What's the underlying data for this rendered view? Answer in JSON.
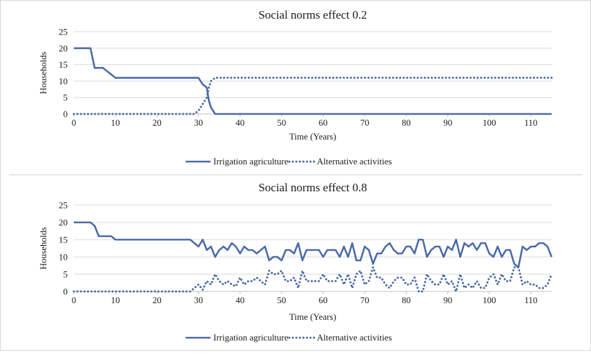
{
  "colors": {
    "series": "#4a6aa8",
    "grid": "#d9d9d9",
    "divider": "#cccccc"
  },
  "chart_data": [
    {
      "type": "line",
      "title": "Social norms effect 0.2",
      "xlabel": "Time (Years)",
      "ylabel": "Households",
      "xlim": [
        0,
        115
      ],
      "ylim": [
        0,
        25
      ],
      "xticks": [
        "0",
        "10",
        "20",
        "30",
        "40",
        "50",
        "60",
        "70",
        "80",
        "90",
        "100",
        "110"
      ],
      "yticks": [
        "0",
        "5",
        "10",
        "15",
        "20",
        "25"
      ],
      "grid": "horizontal",
      "legend": "bottom",
      "series": [
        {
          "name": "Irrigation agriculture",
          "style": "solid",
          "points": [
            [
              0,
              20
            ],
            [
              4,
              20
            ],
            [
              5,
              14
            ],
            [
              7,
              14
            ],
            [
              9,
              12
            ],
            [
              10,
              11
            ],
            [
              30,
              11
            ],
            [
              31,
              9
            ],
            [
              32,
              8
            ],
            [
              32.5,
              4
            ],
            [
              33,
              2
            ],
            [
              34,
              0
            ],
            [
              115,
              0
            ]
          ]
        },
        {
          "name": "Alternative activities",
          "style": "dotted",
          "points": [
            [
              0,
              0
            ],
            [
              29,
              0
            ],
            [
              30,
              1
            ],
            [
              31,
              3
            ],
            [
              32,
              5
            ],
            [
              32.5,
              8
            ],
            [
              33,
              10
            ],
            [
              34,
              11
            ],
            [
              115,
              11
            ]
          ]
        }
      ]
    },
    {
      "type": "line",
      "title": "Social norms effect 0.8",
      "xlabel": "Time (Years)",
      "ylabel": "Households",
      "xlim": [
        0,
        115
      ],
      "ylim": [
        0,
        25
      ],
      "xticks": [
        "0",
        "10",
        "20",
        "30",
        "40",
        "50",
        "60",
        "70",
        "80",
        "90",
        "100",
        "110"
      ],
      "yticks": [
        "0",
        "5",
        "10",
        "15",
        "20",
        "25"
      ],
      "grid": "horizontal",
      "legend": "bottom",
      "series": [
        {
          "name": "Irrigation agriculture",
          "style": "solid",
          "points": [
            [
              0,
              20
            ],
            [
              4,
              20
            ],
            [
              5,
              19
            ],
            [
              6,
              16
            ],
            [
              9,
              16
            ],
            [
              10,
              15
            ],
            [
              28,
              15
            ],
            [
              30,
              13
            ],
            [
              31,
              15
            ],
            [
              32,
              12
            ],
            [
              33,
              13
            ],
            [
              34,
              10
            ],
            [
              35,
              12
            ],
            [
              36,
              13
            ],
            [
              37,
              12
            ],
            [
              38,
              14
            ],
            [
              39,
              13
            ],
            [
              40,
              11
            ],
            [
              41,
              13
            ],
            [
              42,
              12
            ],
            [
              43,
              12
            ],
            [
              44,
              11
            ],
            [
              45,
              12
            ],
            [
              46,
              13
            ],
            [
              47,
              9
            ],
            [
              48,
              10
            ],
            [
              49,
              10
            ],
            [
              50,
              9
            ],
            [
              51,
              12
            ],
            [
              52,
              12
            ],
            [
              53,
              11
            ],
            [
              54,
              14
            ],
            [
              55,
              9
            ],
            [
              56,
              12
            ],
            [
              57,
              12
            ],
            [
              58,
              12
            ],
            [
              59,
              12
            ],
            [
              60,
              10
            ],
            [
              61,
              12
            ],
            [
              62,
              12
            ],
            [
              63,
              12
            ],
            [
              64,
              10
            ],
            [
              65,
              13
            ],
            [
              66,
              10
            ],
            [
              67,
              14
            ],
            [
              68,
              9
            ],
            [
              69,
              9
            ],
            [
              70,
              13
            ],
            [
              71,
              12
            ],
            [
              72,
              8
            ],
            [
              73,
              11
            ],
            [
              74,
              11
            ],
            [
              75,
              13
            ],
            [
              76,
              14
            ],
            [
              77,
              12
            ],
            [
              78,
              11
            ],
            [
              79,
              11
            ],
            [
              80,
              13
            ],
            [
              81,
              13
            ],
            [
              82,
              11
            ],
            [
              83,
              15
            ],
            [
              84,
              15
            ],
            [
              85,
              10
            ],
            [
              86,
              12
            ],
            [
              87,
              13
            ],
            [
              88,
              13
            ],
            [
              89,
              10
            ],
            [
              90,
              13
            ],
            [
              91,
              12
            ],
            [
              92,
              15
            ],
            [
              93,
              10
            ],
            [
              94,
              14
            ],
            [
              95,
              13
            ],
            [
              96,
              14
            ],
            [
              97,
              12
            ],
            [
              98,
              14
            ],
            [
              99,
              14
            ],
            [
              100,
              11
            ],
            [
              101,
              10
            ],
            [
              102,
              13
            ],
            [
              103,
              10
            ],
            [
              104,
              12
            ],
            [
              105,
              12
            ],
            [
              106,
              8
            ],
            [
              107,
              7
            ],
            [
              108,
              13
            ],
            [
              109,
              12
            ],
            [
              110,
              13
            ],
            [
              111,
              13
            ],
            [
              112,
              14
            ],
            [
              113,
              14
            ],
            [
              114,
              13
            ],
            [
              115,
              10
            ]
          ]
        },
        {
          "name": "Alternative activities",
          "style": "dotted",
          "points": [
            [
              0,
              0
            ],
            [
              28,
              0
            ],
            [
              29,
              1
            ],
            [
              30,
              2
            ],
            [
              31,
              0.5
            ],
            [
              32,
              3
            ],
            [
              33,
              2
            ],
            [
              34,
              5
            ],
            [
              35,
              3
            ],
            [
              36,
              2
            ],
            [
              37,
              3
            ],
            [
              38,
              2
            ],
            [
              39,
              1.5
            ],
            [
              40,
              4
            ],
            [
              41,
              2
            ],
            [
              42,
              3
            ],
            [
              43,
              3
            ],
            [
              44,
              4
            ],
            [
              45,
              3
            ],
            [
              46,
              2
            ],
            [
              47,
              6
            ],
            [
              48,
              5
            ],
            [
              49,
              5
            ],
            [
              50,
              6
            ],
            [
              51,
              3
            ],
            [
              52,
              3
            ],
            [
              53,
              4
            ],
            [
              54,
              1
            ],
            [
              55,
              6
            ],
            [
              56,
              3
            ],
            [
              57,
              3
            ],
            [
              58,
              3
            ],
            [
              59,
              3
            ],
            [
              60,
              5
            ],
            [
              61,
              3
            ],
            [
              62,
              3
            ],
            [
              63,
              3
            ],
            [
              64,
              5
            ],
            [
              65,
              2
            ],
            [
              66,
              5
            ],
            [
              67,
              1
            ],
            [
              68,
              5
            ],
            [
              69,
              6
            ],
            [
              70,
              2
            ],
            [
              71,
              3
            ],
            [
              72,
              7
            ],
            [
              73,
              4
            ],
            [
              74,
              4
            ],
            [
              75,
              2
            ],
            [
              76,
              1
            ],
            [
              77,
              3
            ],
            [
              78,
              4
            ],
            [
              79,
              4
            ],
            [
              80,
              2
            ],
            [
              81,
              2
            ],
            [
              82,
              4
            ],
            [
              83,
              0
            ],
            [
              84,
              0
            ],
            [
              85,
              5
            ],
            [
              86,
              3
            ],
            [
              87,
              2
            ],
            [
              88,
              2
            ],
            [
              89,
              5
            ],
            [
              90,
              2
            ],
            [
              91,
              3
            ],
            [
              92,
              0
            ],
            [
              93,
              5
            ],
            [
              94,
              1
            ],
            [
              95,
              2
            ],
            [
              96,
              1
            ],
            [
              97,
              3
            ],
            [
              98,
              1
            ],
            [
              99,
              1
            ],
            [
              100,
              4
            ],
            [
              101,
              5
            ],
            [
              102,
              2
            ],
            [
              103,
              5
            ],
            [
              104,
              3
            ],
            [
              105,
              3
            ],
            [
              106,
              7
            ],
            [
              107,
              7
            ],
            [
              108,
              2
            ],
            [
              109,
              3
            ],
            [
              110,
              2
            ],
            [
              111,
              2
            ],
            [
              112,
              1
            ],
            [
              113,
              1
            ],
            [
              114,
              2
            ],
            [
              115,
              5
            ]
          ]
        }
      ]
    }
  ]
}
